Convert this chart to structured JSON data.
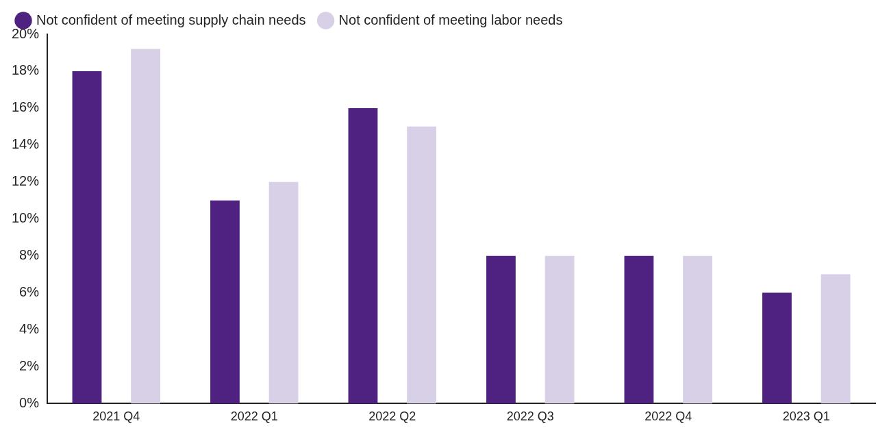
{
  "chart_data": {
    "type": "bar",
    "categories": [
      "2021 Q4",
      "2022 Q1",
      "2022 Q2",
      "2022 Q3",
      "2022 Q4",
      "2023 Q1"
    ],
    "series": [
      {
        "name": "Not confident of meeting supply chain needs",
        "color": "#4f2282",
        "values": [
          18,
          11,
          16,
          8,
          8,
          6
        ]
      },
      {
        "name": "Not confident of meeting labor needs",
        "color": "#d8d0e6",
        "values": [
          19.2,
          12,
          15,
          8,
          8,
          7
        ]
      }
    ],
    "ylim": [
      0,
      20
    ],
    "yticks": [
      {
        "value": 0,
        "label": "0%"
      },
      {
        "value": 2,
        "label": "2%"
      },
      {
        "value": 4,
        "label": "4%"
      },
      {
        "value": 6,
        "label": "6%"
      },
      {
        "value": 8,
        "label": "8%"
      },
      {
        "value": 10,
        "label": "10%"
      },
      {
        "value": 12,
        "label": "12%"
      },
      {
        "value": 14,
        "label": "14%"
      },
      {
        "value": 16,
        "label": "16%"
      },
      {
        "value": 18,
        "label": "18%"
      },
      {
        "value": 20,
        "label": "20%"
      }
    ],
    "grid": false,
    "legend": "top left"
  }
}
